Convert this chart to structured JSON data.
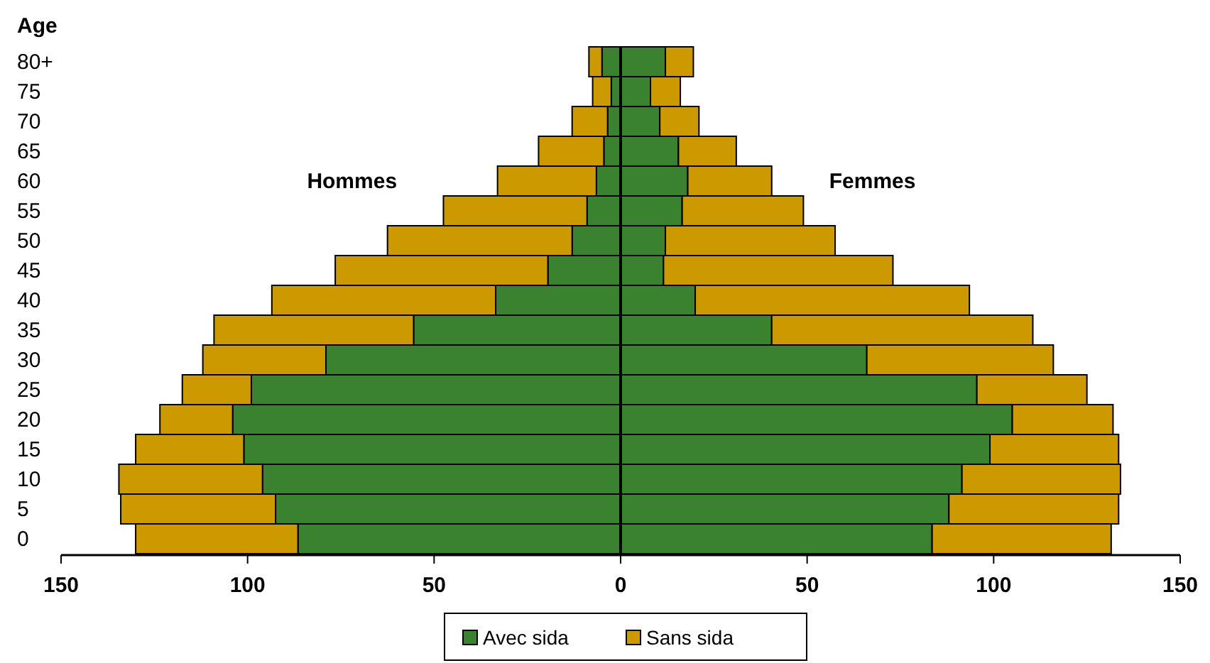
{
  "chart_data": {
    "type": "bar",
    "orientation": "horizontal",
    "stacked": true,
    "ylabel": "Age",
    "categories": [
      "80+",
      "75",
      "70",
      "65",
      "60",
      "55",
      "50",
      "45",
      "40",
      "35",
      "30",
      "25",
      "20",
      "15",
      "10",
      "5",
      "0"
    ],
    "series": [
      {
        "name": "Avec sida",
        "color": "#3a8230",
        "values": [
          -5,
          -2.5,
          -3.5,
          -4.5,
          -6.5,
          -9,
          -13,
          -19.5,
          -33.5,
          -55.5,
          -79,
          -99,
          -104,
          -101,
          -96,
          -92.5,
          -86.5
        ]
      },
      {
        "name": "Sans sida",
        "color": "#cc9900",
        "values": [
          -3.5,
          -5,
          -9.5,
          -17.5,
          -26.5,
          -38.5,
          -49.5,
          -57,
          -60,
          -53.5,
          -33,
          -18.5,
          -19.5,
          -29,
          -38.5,
          -41.5,
          -43.5
        ]
      },
      {
        "color": "#3a8230",
        "values": [
          12,
          8,
          10.5,
          15.5,
          18,
          16.5,
          12,
          11.5,
          20,
          40.5,
          66,
          95.5,
          105,
          99,
          91.5,
          88,
          83.5
        ]
      },
      {
        "color": "#cc9900",
        "values": [
          7.5,
          8,
          10.5,
          15.5,
          22.5,
          32.5,
          45.5,
          61.5,
          73.5,
          70,
          50,
          29.5,
          27,
          34.5,
          42.5,
          45.5,
          48
        ]
      }
    ],
    "xlim": [
      -150,
      150
    ],
    "xticks": [
      {
        "value": -150,
        "label": "150"
      },
      {
        "value": -100,
        "label": "100"
      },
      {
        "value": -50,
        "label": "50"
      },
      0,
      50,
      100,
      150
    ],
    "annotations": [
      "Hommes",
      "Femmes"
    ],
    "legend": "bottom"
  }
}
